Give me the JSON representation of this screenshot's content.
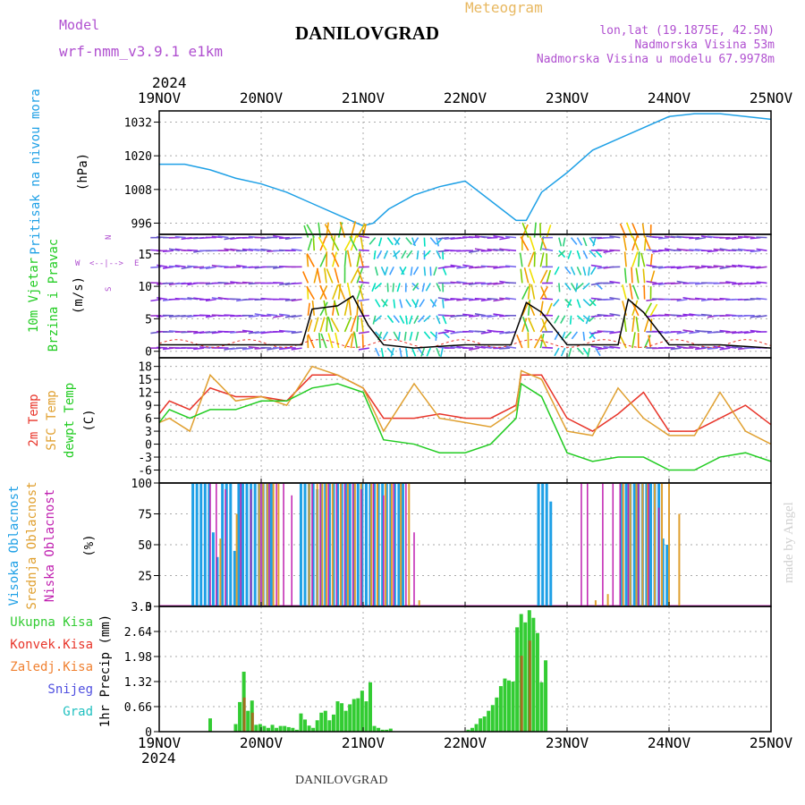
{
  "header": {
    "model_label": "Model",
    "model_name": "wrf-nmm_v3.9.1 e1km",
    "meteogram": "Meteogram",
    "station": "DANILOVGRAD",
    "lonlat": "lon,lat (19.1875E, 42.5N)",
    "elevation": "Nadmorska Visina 53m",
    "model_elevation": "Nadmorska Visina u modelu 67.9978m",
    "year_top": "2024",
    "year_bottom": "2024",
    "footer_station": "DANILOVGRAD",
    "watermark": "made by Angel"
  },
  "colors": {
    "pressure": "#1ea0e6",
    "temp2m": "#e8352a",
    "sfc_temp": "#e0a030",
    "dewpt": "#22cc22",
    "high_cloud": "#1ea0e6",
    "mid_cloud": "#e0a030",
    "low_cloud": "#c020b0",
    "precip_total": "#33cc33",
    "precip_conv": "#e8352a",
    "precip_frozen": "#f08030",
    "snow": "#5050e0",
    "grad": "#20c0c0",
    "purple_text": "#b050d0",
    "gold_text": "#e8b860"
  },
  "chart_data": [
    {
      "type": "line",
      "x_ticks": [
        "19NOV",
        "20NOV",
        "21NOV",
        "22NOV",
        "23NOV",
        "24NOV",
        "25NOV"
      ],
      "title": "Pritisak na nivou mora",
      "ylabel": "(hPa)",
      "ylim": [
        992,
        1036
      ],
      "yticks": [
        996,
        1008,
        1020,
        1032
      ],
      "grid": true,
      "series": [
        {
          "name": "Pritisak na nivou mora",
          "color": "#1ea0e6",
          "x": [
            0,
            0.25,
            0.5,
            0.75,
            1.0,
            1.25,
            1.5,
            1.75,
            2.0,
            2.1,
            2.25,
            2.5,
            2.75,
            3.0,
            3.25,
            3.5,
            3.6,
            3.75,
            4.0,
            4.25,
            4.5,
            4.75,
            5.0,
            5.25,
            5.5,
            5.75,
            6.0
          ],
          "y": [
            1017,
            1017,
            1015,
            1012,
            1010,
            1007,
            1003,
            999,
            995,
            996,
            1001,
            1006,
            1009,
            1011,
            1004,
            997,
            997,
            1007,
            1014,
            1022,
            1026,
            1030,
            1034,
            1035,
            1035,
            1034,
            1033
          ]
        }
      ]
    },
    {
      "type": "line",
      "x_ticks": [
        "19NOV",
        "20NOV",
        "21NOV",
        "22NOV",
        "23NOV",
        "24NOV",
        "25NOV"
      ],
      "title": "10m Vjetar Brzina i Pravac",
      "ylabel": "(m/s)",
      "ylim": [
        -1,
        18
      ],
      "yticks": [
        0,
        5,
        10,
        15
      ],
      "direction_legend": {
        "north": "N",
        "south": "S",
        "west": "W",
        "east": "E"
      },
      "grid": true,
      "series": [
        {
          "name": "10m Vjetar Brzina",
          "color": "#000000",
          "x": [
            0,
            0.5,
            1.0,
            1.4,
            1.5,
            1.75,
            1.9,
            2.05,
            2.2,
            2.5,
            3.0,
            3.45,
            3.6,
            3.75,
            4.0,
            4.5,
            4.6,
            4.75,
            5.0,
            5.5,
            6.0
          ],
          "y": [
            1,
            1,
            1,
            1,
            6.5,
            7,
            8.5,
            4,
            1,
            0.5,
            1,
            1,
            7.5,
            6,
            1,
            1,
            8,
            6,
            1,
            1,
            0.5
          ]
        }
      ]
    },
    {
      "type": "line",
      "x_ticks": [
        "19NOV",
        "20NOV",
        "21NOV",
        "22NOV",
        "23NOV",
        "24NOV",
        "25NOV"
      ],
      "title": "2m Temp / SFC Temp / dewpt Temp",
      "ylabel": "(C)",
      "ylim": [
        -9,
        20
      ],
      "yticks": [
        -6,
        -3,
        0,
        3,
        6,
        9,
        12,
        15,
        18
      ],
      "grid": true,
      "series": [
        {
          "name": "2m Temp",
          "color": "#e8352a",
          "x": [
            0,
            0.1,
            0.3,
            0.5,
            0.75,
            1.0,
            1.25,
            1.5,
            1.75,
            2.0,
            2.2,
            2.5,
            2.75,
            3.0,
            3.25,
            3.5,
            3.55,
            3.75,
            4.0,
            4.25,
            4.5,
            4.75,
            5.0,
            5.25,
            5.5,
            5.75,
            6.0
          ],
          "y": [
            7,
            10,
            8,
            13,
            11,
            11,
            10,
            16,
            16,
            13,
            6,
            6,
            7,
            6,
            6,
            9,
            16,
            16,
            6,
            3,
            7,
            12,
            3,
            3,
            6,
            9,
            4.5
          ]
        },
        {
          "name": "SFC Temp",
          "color": "#e0a030",
          "x": [
            0,
            0.1,
            0.3,
            0.5,
            0.75,
            1.0,
            1.25,
            1.5,
            1.75,
            2.0,
            2.2,
            2.5,
            2.75,
            3.0,
            3.25,
            3.5,
            3.55,
            3.75,
            4.0,
            4.25,
            4.5,
            4.75,
            5.0,
            5.25,
            5.5,
            5.75,
            6.0
          ],
          "y": [
            5,
            6,
            3,
            16,
            10,
            11,
            9,
            18,
            16,
            13,
            3,
            14,
            6,
            5,
            4,
            8,
            17,
            15,
            3,
            2,
            13,
            6,
            2,
            2,
            12,
            3,
            0
          ]
        },
        {
          "name": "dewpt Temp",
          "color": "#22cc22",
          "x": [
            0,
            0.1,
            0.3,
            0.5,
            0.75,
            1.0,
            1.25,
            1.5,
            1.75,
            2.0,
            2.2,
            2.5,
            2.75,
            3.0,
            3.25,
            3.5,
            3.55,
            3.75,
            4.0,
            4.25,
            4.5,
            4.75,
            5.0,
            5.25,
            5.5,
            5.75,
            6.0
          ],
          "y": [
            5,
            8,
            6,
            8,
            8,
            10,
            10,
            13,
            14,
            12,
            1,
            0,
            -2,
            -2,
            0,
            6,
            14,
            11,
            -2,
            -4,
            -3,
            -3,
            -6,
            -6,
            -3,
            -2,
            -4
          ]
        }
      ]
    },
    {
      "type": "bar",
      "x_ticks": [
        "19NOV",
        "20NOV",
        "21NOV",
        "22NOV",
        "23NOV",
        "24NOV",
        "25NOV"
      ],
      "title": "Visoka Oblacnost / Srednja Oblacnost / Niska Oblacnost",
      "ylabel": "(%)",
      "ylim": [
        0,
        100
      ],
      "yticks": [
        0,
        25,
        50,
        75,
        100
      ],
      "grid": true,
      "series": [
        {
          "name": "Visoka Oblacnost",
          "color": "#1ea0e6",
          "x": [
            0.33,
            0.37,
            0.41,
            0.45,
            0.49,
            0.53,
            0.57,
            0.62,
            0.66,
            0.7,
            0.74,
            0.78,
            0.82,
            0.86,
            0.9,
            0.94,
            0.98,
            1.02,
            1.06,
            1.1,
            1.39,
            1.43,
            1.47,
            1.51,
            1.55,
            1.59,
            1.63,
            1.67,
            1.71,
            1.75,
            1.79,
            1.83,
            1.87,
            1.91,
            1.95,
            1.99,
            2.03,
            2.07,
            2.11,
            2.15,
            2.19,
            2.23,
            2.27,
            2.31,
            2.35,
            2.39,
            2.43,
            2.47,
            3.72,
            3.76,
            3.8,
            3.84,
            4.22,
            4.26,
            4.3,
            4.34,
            4.38,
            4.42,
            4.46,
            4.5,
            4.54,
            4.58,
            4.62,
            4.66,
            4.7,
            4.74,
            4.78,
            4.82,
            4.86,
            4.9,
            4.94,
            4.98,
            5.02
          ],
          "y": [
            100,
            100,
            100,
            100,
            100,
            60,
            40,
            100,
            100,
            100,
            45,
            100,
            100,
            100,
            100,
            100,
            100,
            100,
            100,
            100,
            100,
            100,
            100,
            100,
            95,
            100,
            100,
            100,
            100,
            100,
            100,
            100,
            100,
            100,
            100,
            100,
            100,
            100,
            100,
            100,
            100,
            100,
            100,
            100,
            100,
            100,
            0,
            0,
            100,
            100,
            100,
            85,
            0,
            0,
            0,
            0,
            0,
            0,
            0,
            0,
            100,
            100,
            100,
            100,
            100,
            100,
            100,
            100,
            100,
            100,
            55,
            50,
            0
          ]
        },
        {
          "name": "Srednja Oblacnost",
          "color": "#e0a030",
          "x": [
            0.6,
            0.76,
            0.98,
            1.02,
            1.06,
            1.12,
            1.17,
            1.47,
            1.55,
            1.6,
            1.64,
            1.7,
            1.78,
            1.85,
            1.92,
            1.98,
            2.08,
            2.14,
            2.22,
            2.28,
            2.37,
            2.45,
            2.55,
            4.28,
            4.4,
            4.55,
            4.62,
            4.68,
            4.74,
            4.79,
            4.86,
            4.93,
            5.0,
            5.1
          ],
          "y": [
            55,
            75,
            100,
            100,
            100,
            100,
            100,
            100,
            100,
            100,
            100,
            100,
            100,
            100,
            100,
            100,
            100,
            100,
            100,
            100,
            100,
            100,
            5,
            5,
            10,
            100,
            100,
            100,
            100,
            100,
            100,
            100,
            100,
            75
          ]
        },
        {
          "name": "Niska Oblacnost",
          "color": "#c020b0",
          "x": [
            0.5,
            0.56,
            0.65,
            0.8,
            0.9,
            1.0,
            1.08,
            1.15,
            1.22,
            1.3,
            1.5,
            1.58,
            1.66,
            1.74,
            1.82,
            1.9,
            1.98,
            2.1,
            2.2,
            2.3,
            2.42,
            2.5,
            2.62,
            4.14,
            4.2,
            4.35,
            4.45,
            4.52,
            4.6,
            4.7,
            4.8,
            4.9,
            5.05
          ],
          "y": [
            100,
            100,
            95,
            100,
            95,
            100,
            100,
            100,
            100,
            90,
            100,
            100,
            100,
            100,
            100,
            100,
            95,
            100,
            90,
            100,
            100,
            60,
            0,
            100,
            100,
            100,
            100,
            100,
            100,
            100,
            100,
            80,
            0
          ]
        }
      ]
    },
    {
      "type": "bar",
      "x_ticks": [
        "19NOV",
        "20NOV",
        "21NOV",
        "22NOV",
        "23NOV",
        "24NOV",
        "25NOV"
      ],
      "title": "1hr Precip",
      "ylabel": "1hr Precip (mm)",
      "ylim": [
        0,
        3.3
      ],
      "yticks": [
        0,
        0.66,
        1.32,
        1.98,
        2.64,
        3.3
      ],
      "grid": true,
      "legend": [
        "Ukupna Kisa",
        "Konvek.Kisa",
        "Zaledj.Kisa",
        "Snijeg",
        "Grad"
      ],
      "series": [
        {
          "name": "Ukupna Kisa",
          "color": "#33cc33",
          "x": [
            0.5,
            0.75,
            0.79,
            0.83,
            0.87,
            0.91,
            0.95,
            0.99,
            1.03,
            1.07,
            1.11,
            1.15,
            1.19,
            1.23,
            1.27,
            1.31,
            1.35,
            1.39,
            1.43,
            1.47,
            1.51,
            1.55,
            1.59,
            1.63,
            1.67,
            1.71,
            1.75,
            1.79,
            1.83,
            1.87,
            1.91,
            1.95,
            1.99,
            2.03,
            2.07,
            2.11,
            2.15,
            2.19,
            2.23,
            2.27,
            3.03,
            3.07,
            3.11,
            3.15,
            3.19,
            3.23,
            3.27,
            3.31,
            3.35,
            3.39,
            3.43,
            3.47,
            3.51,
            3.55,
            3.59,
            3.63,
            3.67,
            3.71,
            3.75,
            3.79
          ],
          "y": [
            0.35,
            0.2,
            0.78,
            1.58,
            0.55,
            0.82,
            0.18,
            0.2,
            0.15,
            0.1,
            0.18,
            0.1,
            0.15,
            0.15,
            0.12,
            0.1,
            0.05,
            0.48,
            0.32,
            0.16,
            0.1,
            0.3,
            0.5,
            0.55,
            0.3,
            0.45,
            0.8,
            0.75,
            0.55,
            0.72,
            0.86,
            0.88,
            1.08,
            0.8,
            1.3,
            0.15,
            0.1,
            0.05,
            0.05,
            0.08,
            0.05,
            0.1,
            0.2,
            0.35,
            0.4,
            0.55,
            0.7,
            0.9,
            1.2,
            1.4,
            1.35,
            1.32,
            2.75,
            3.1,
            2.88,
            3.2,
            3.0,
            2.6,
            1.3,
            1.88
          ]
        },
        {
          "name": "Konvek.Kisa",
          "color": "#e8352a",
          "x": [
            0.83,
            0.91,
            3.55,
            3.63
          ],
          "y": [
            0.9,
            0.5,
            2.0,
            2.4
          ]
        },
        {
          "name": "Zaledj.Kisa",
          "color": "#f08030",
          "x": [],
          "y": []
        },
        {
          "name": "Snijeg",
          "color": "#5050e0",
          "x": [],
          "y": []
        },
        {
          "name": "Grad",
          "color": "#20c0c0",
          "x": [],
          "y": []
        }
      ]
    }
  ]
}
